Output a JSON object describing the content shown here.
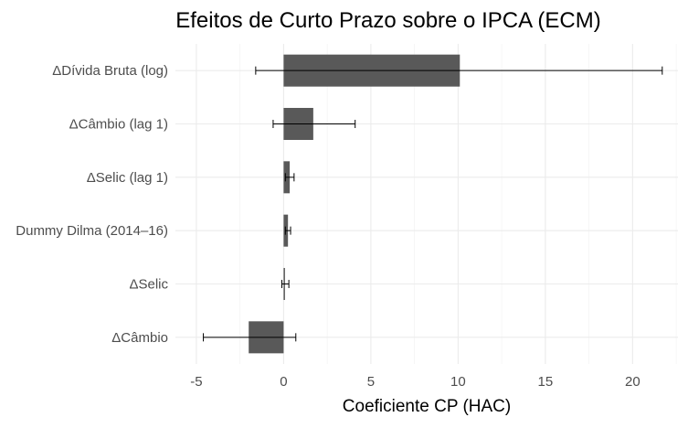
{
  "chart_data": {
    "type": "bar",
    "orientation": "horizontal",
    "title": "Efeitos de Curto Prazo sobre o IPCA (ECM)",
    "xlabel": "Coeficiente CP (HAC)",
    "ylabel": "",
    "xlim": [
      -6.2,
      22.6
    ],
    "xticks": [
      -5,
      0,
      5,
      10,
      15,
      20
    ],
    "grid": true,
    "legend": "none",
    "colors": {
      "bar": "#595959",
      "error_bar": "#000000",
      "grid_major": "#ebebeb",
      "grid_minor": "#f4f4f4",
      "text": "#4d4d4d",
      "title": "#000000"
    },
    "categories": [
      "ΔDívida Bruta (log)",
      "ΔCâmbio (lag 1)",
      "ΔSelic (lag 1)",
      "Dummy Dilma (2014–16)",
      "ΔSelic",
      "ΔCâmbio"
    ],
    "values": [
      10.1,
      1.7,
      0.35,
      0.25,
      0.05,
      -2.0
    ],
    "error_low": [
      -1.6,
      -0.6,
      0.1,
      0.1,
      -0.1,
      -4.6
    ],
    "error_high": [
      21.7,
      4.1,
      0.6,
      0.4,
      0.3,
      0.7
    ]
  }
}
